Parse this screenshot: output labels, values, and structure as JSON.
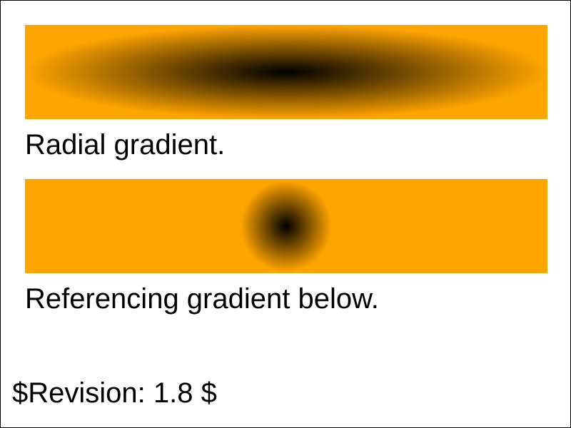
{
  "colors": {
    "border": "#000000",
    "gradient_outer": "#ffa500",
    "gradient_center": "#000000",
    "background": "#ffffff",
    "text": "#000000"
  },
  "panels": [
    {
      "caption": "Radial gradient.",
      "gradient": {
        "type": "radial",
        "center_color": "#000000",
        "outer_color": "#ffa500"
      }
    },
    {
      "caption": "Referencing gradient below.",
      "gradient": {
        "type": "radial",
        "center_color": "#000000",
        "outer_color": "#ffa500"
      }
    }
  ],
  "footer": {
    "revision": "$Revision: 1.8 $"
  }
}
